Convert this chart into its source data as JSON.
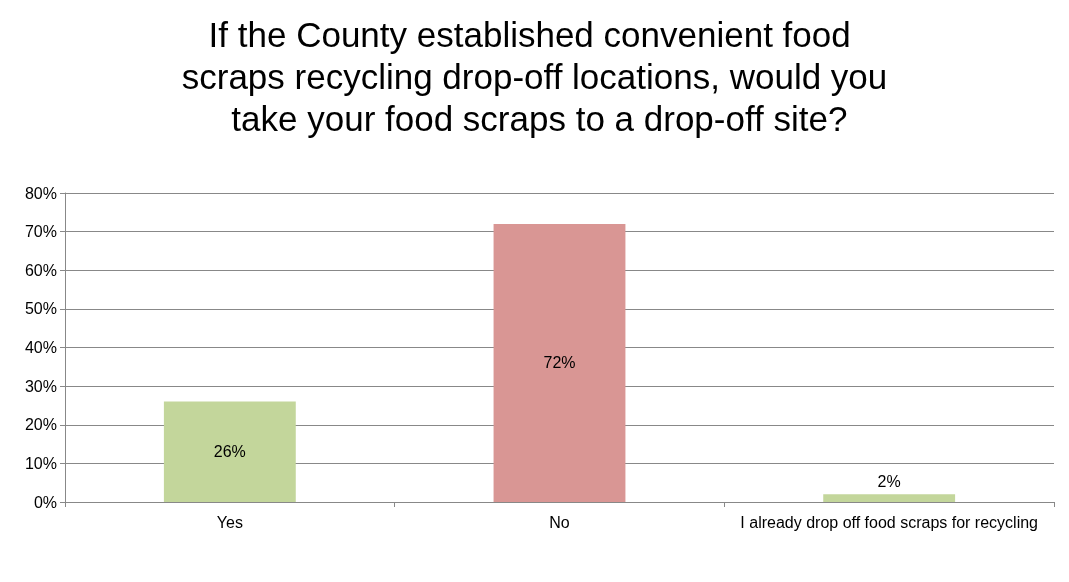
{
  "chart_data": {
    "type": "bar",
    "title": "If the County established convenient food scraps recycling drop-off locations, would you take your food scraps to a drop-off site?",
    "categories": [
      "Yes",
      "No",
      "I already drop off food scraps for recycling"
    ],
    "values": [
      26,
      72,
      2
    ],
    "colors": [
      "#c3d69b",
      "#d99694",
      "#c3d69b"
    ],
    "value_labels": [
      "26%",
      "72%",
      "2%"
    ],
    "ylim": [
      0,
      80
    ],
    "yticks": [
      {
        "value": 0,
        "label": "0%"
      },
      {
        "value": 10,
        "label": "10%"
      },
      {
        "value": 20,
        "label": "20%"
      },
      {
        "value": 30,
        "label": "30%"
      },
      {
        "value": 40,
        "label": "40%"
      },
      {
        "value": 50,
        "label": "50%"
      },
      {
        "value": 60,
        "label": "60%"
      },
      {
        "value": 70,
        "label": "70%"
      },
      {
        "value": 80,
        "label": "80%"
      }
    ],
    "grid": "y"
  }
}
